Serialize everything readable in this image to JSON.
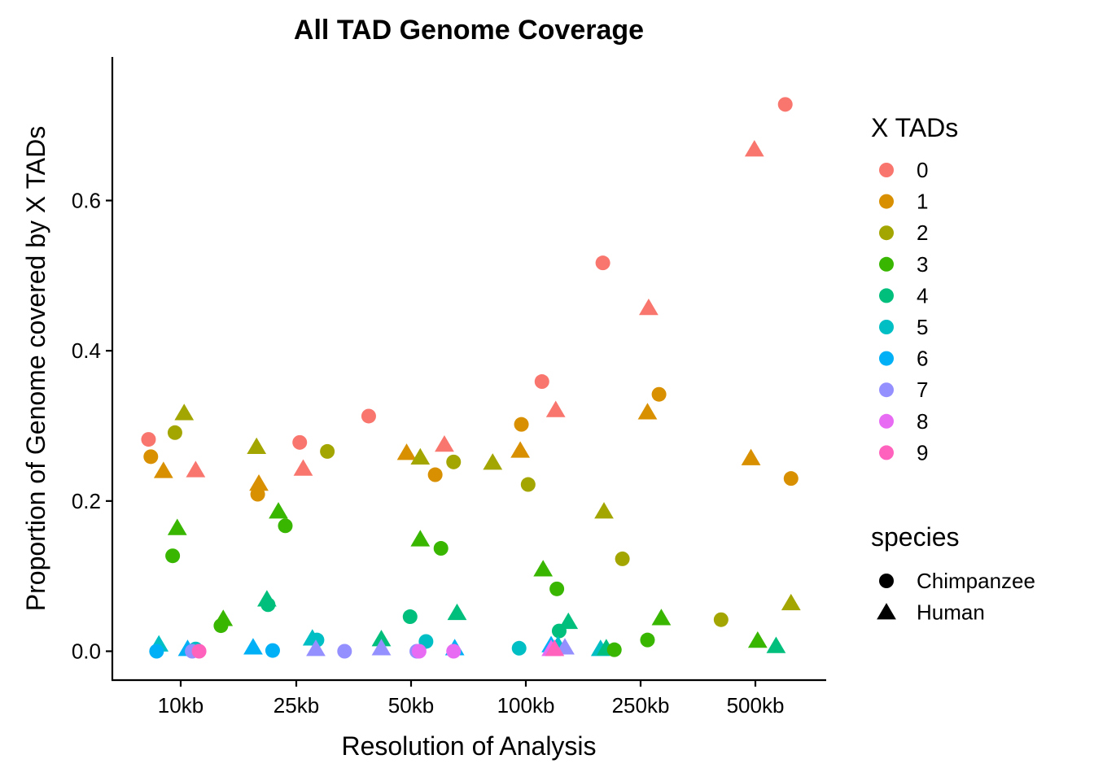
{
  "chart_data": {
    "type": "scatter",
    "title": "All TAD Genome Coverage",
    "xlabel": "Resolution of Analysis",
    "ylabel": "Proportion of Genome covered by X TADs",
    "categories": [
      "10kb",
      "25kb",
      "50kb",
      "100kb",
      "250kb",
      "500kb"
    ],
    "yticks": [
      0.0,
      0.2,
      0.4,
      0.6
    ],
    "ytick_labels": [
      "0.0",
      "0.2",
      "0.4",
      "0.6"
    ],
    "ylim": [
      -0.038,
      0.79
    ],
    "jitter_note": "points horizontally jittered around categories",
    "grid": false,
    "legend_position": "right",
    "color_legend": {
      "title": "X TADs",
      "entries": [
        {
          "label": "0",
          "color": "#F8766D"
        },
        {
          "label": "1",
          "color": "#D89000"
        },
        {
          "label": "2",
          "color": "#A3A500"
        },
        {
          "label": "3",
          "color": "#39B600"
        },
        {
          "label": "4",
          "color": "#00BF7D"
        },
        {
          "label": "5",
          "color": "#00BFC4"
        },
        {
          "label": "6",
          "color": "#00B0F6"
        },
        {
          "label": "7",
          "color": "#9590FF"
        },
        {
          "label": "8",
          "color": "#E76BF3"
        },
        {
          "label": "9",
          "color": "#FF62BC"
        }
      ]
    },
    "shape_legend": {
      "title": "species",
      "entries": [
        {
          "label": "Chimpanzee",
          "shape": "circle"
        },
        {
          "label": "Human",
          "shape": "triangle"
        }
      ]
    },
    "points": [
      {
        "x": 0.72,
        "y": 0.282,
        "tads": "0",
        "species": "Chimpanzee"
      },
      {
        "x": 0.74,
        "y": 0.259,
        "tads": "1",
        "species": "Chimpanzee"
      },
      {
        "x": 0.85,
        "y": 0.239,
        "tads": "1",
        "species": "Human"
      },
      {
        "x": 0.95,
        "y": 0.291,
        "tads": "2",
        "species": "Chimpanzee"
      },
      {
        "x": 1.03,
        "y": 0.316,
        "tads": "2",
        "species": "Human"
      },
      {
        "x": 1.13,
        "y": 0.24,
        "tads": "0",
        "species": "Human"
      },
      {
        "x": 0.97,
        "y": 0.163,
        "tads": "3",
        "species": "Human"
      },
      {
        "x": 0.93,
        "y": 0.127,
        "tads": "3",
        "species": "Chimpanzee"
      },
      {
        "x": 0.81,
        "y": 0.008,
        "tads": "5",
        "species": "Human"
      },
      {
        "x": 0.79,
        "y": 0.0,
        "tads": "6",
        "species": "Chimpanzee"
      },
      {
        "x": 1.06,
        "y": 0.002,
        "tads": "6",
        "species": "Human"
      },
      {
        "x": 1.13,
        "y": 0.003,
        "tads": "5",
        "species": "Chimpanzee"
      },
      {
        "x": 1.1,
        "y": 0.0,
        "tads": "7",
        "species": "Chimpanzee"
      },
      {
        "x": 1.16,
        "y": 0.0,
        "tads": "9",
        "species": "Chimpanzee"
      },
      {
        "x": 1.66,
        "y": 0.271,
        "tads": "2",
        "species": "Human"
      },
      {
        "x": 1.68,
        "y": 0.222,
        "tads": "1",
        "species": "Human"
      },
      {
        "x": 1.67,
        "y": 0.209,
        "tads": "1",
        "species": "Chimpanzee"
      },
      {
        "x": 2.03,
        "y": 0.278,
        "tads": "0",
        "species": "Chimpanzee"
      },
      {
        "x": 2.06,
        "y": 0.242,
        "tads": "0",
        "species": "Human"
      },
      {
        "x": 2.27,
        "y": 0.266,
        "tads": "2",
        "species": "Chimpanzee"
      },
      {
        "x": 1.85,
        "y": 0.185,
        "tads": "3",
        "species": "Human"
      },
      {
        "x": 1.91,
        "y": 0.167,
        "tads": "3",
        "species": "Chimpanzee"
      },
      {
        "x": 1.75,
        "y": 0.068,
        "tads": "4",
        "species": "Human"
      },
      {
        "x": 1.76,
        "y": 0.062,
        "tads": "4",
        "species": "Chimpanzee"
      },
      {
        "x": 1.37,
        "y": 0.042,
        "tads": "3",
        "species": "Human"
      },
      {
        "x": 1.35,
        "y": 0.034,
        "tads": "3",
        "species": "Chimpanzee"
      },
      {
        "x": 1.63,
        "y": 0.004,
        "tads": "6",
        "species": "Human"
      },
      {
        "x": 1.8,
        "y": 0.001,
        "tads": "6",
        "species": "Chimpanzee"
      },
      {
        "x": 2.14,
        "y": 0.016,
        "tads": "5",
        "species": "Human"
      },
      {
        "x": 2.18,
        "y": 0.015,
        "tads": "5",
        "species": "Chimpanzee"
      },
      {
        "x": 2.17,
        "y": 0.002,
        "tads": "7",
        "species": "Human"
      },
      {
        "x": 2.42,
        "y": 0.0,
        "tads": "7",
        "species": "Chimpanzee"
      },
      {
        "x": 2.63,
        "y": 0.313,
        "tads": "0",
        "species": "Chimpanzee"
      },
      {
        "x": 2.96,
        "y": 0.263,
        "tads": "1",
        "species": "Human"
      },
      {
        "x": 3.08,
        "y": 0.257,
        "tads": "2",
        "species": "Human"
      },
      {
        "x": 3.29,
        "y": 0.274,
        "tads": "0",
        "species": "Human"
      },
      {
        "x": 3.21,
        "y": 0.235,
        "tads": "1",
        "species": "Chimpanzee"
      },
      {
        "x": 3.37,
        "y": 0.252,
        "tads": "2",
        "species": "Chimpanzee"
      },
      {
        "x": 3.71,
        "y": 0.25,
        "tads": "2",
        "species": "Human"
      },
      {
        "x": 3.08,
        "y": 0.148,
        "tads": "3",
        "species": "Human"
      },
      {
        "x": 3.26,
        "y": 0.137,
        "tads": "3",
        "species": "Chimpanzee"
      },
      {
        "x": 3.4,
        "y": 0.05,
        "tads": "4",
        "species": "Human"
      },
      {
        "x": 2.99,
        "y": 0.046,
        "tads": "4",
        "species": "Chimpanzee"
      },
      {
        "x": 2.74,
        "y": 0.015,
        "tads": "4",
        "species": "Human"
      },
      {
        "x": 3.13,
        "y": 0.013,
        "tads": "5",
        "species": "Chimpanzee"
      },
      {
        "x": 2.74,
        "y": 0.003,
        "tads": "7",
        "species": "Human"
      },
      {
        "x": 3.05,
        "y": 0.0,
        "tads": "7",
        "species": "Chimpanzee"
      },
      {
        "x": 3.07,
        "y": 0.0,
        "tads": "8",
        "species": "Chimpanzee"
      },
      {
        "x": 3.38,
        "y": 0.003,
        "tads": "6",
        "species": "Human"
      },
      {
        "x": 3.37,
        "y": 0.0,
        "tads": "8",
        "species": "Chimpanzee"
      },
      {
        "x": 3.96,
        "y": 0.302,
        "tads": "1",
        "species": "Chimpanzee"
      },
      {
        "x": 4.14,
        "y": 0.359,
        "tads": "0",
        "species": "Chimpanzee"
      },
      {
        "x": 4.26,
        "y": 0.32,
        "tads": "0",
        "species": "Human"
      },
      {
        "x": 3.95,
        "y": 0.266,
        "tads": "1",
        "species": "Human"
      },
      {
        "x": 4.02,
        "y": 0.222,
        "tads": "2",
        "species": "Chimpanzee"
      },
      {
        "x": 4.15,
        "y": 0.108,
        "tads": "3",
        "species": "Human"
      },
      {
        "x": 4.27,
        "y": 0.083,
        "tads": "3",
        "species": "Chimpanzee"
      },
      {
        "x": 4.37,
        "y": 0.038,
        "tads": "4",
        "species": "Human"
      },
      {
        "x": 4.29,
        "y": 0.027,
        "tads": "4",
        "species": "Chimpanzee"
      },
      {
        "x": 3.94,
        "y": 0.004,
        "tads": "5",
        "species": "Chimpanzee"
      },
      {
        "x": 4.22,
        "y": 0.007,
        "tads": "6",
        "species": "Human"
      },
      {
        "x": 4.28,
        "y": 0.007,
        "tads": "5",
        "species": "Human"
      },
      {
        "x": 4.34,
        "y": 0.004,
        "tads": "7",
        "species": "Human"
      },
      {
        "x": 4.22,
        "y": 0.002,
        "tads": "8",
        "species": "Human"
      },
      {
        "x": 4.25,
        "y": 0.002,
        "tads": "9",
        "species": "Human"
      },
      {
        "x": 4.65,
        "y": 0.002,
        "tads": "5",
        "species": "Human"
      },
      {
        "x": 4.7,
        "y": 0.003,
        "tads": "4",
        "species": "Human"
      },
      {
        "x": 4.77,
        "y": 0.002,
        "tads": "3",
        "species": "Chimpanzee"
      },
      {
        "x": 4.67,
        "y": 0.517,
        "tads": "0",
        "species": "Chimpanzee"
      },
      {
        "x": 5.07,
        "y": 0.456,
        "tads": "0",
        "species": "Human"
      },
      {
        "x": 5.06,
        "y": 0.317,
        "tads": "1",
        "species": "Human"
      },
      {
        "x": 5.16,
        "y": 0.342,
        "tads": "1",
        "species": "Chimpanzee"
      },
      {
        "x": 4.68,
        "y": 0.185,
        "tads": "2",
        "species": "Human"
      },
      {
        "x": 4.84,
        "y": 0.123,
        "tads": "2",
        "species": "Chimpanzee"
      },
      {
        "x": 5.18,
        "y": 0.043,
        "tads": "3",
        "species": "Human"
      },
      {
        "x": 5.06,
        "y": 0.015,
        "tads": "3",
        "species": "Chimpanzee"
      },
      {
        "x": 5.7,
        "y": 0.042,
        "tads": "2",
        "species": "Chimpanzee"
      },
      {
        "x": 5.99,
        "y": 0.667,
        "tads": "0",
        "species": "Human"
      },
      {
        "x": 6.26,
        "y": 0.728,
        "tads": "0",
        "species": "Chimpanzee"
      },
      {
        "x": 5.96,
        "y": 0.256,
        "tads": "1",
        "species": "Human"
      },
      {
        "x": 6.31,
        "y": 0.23,
        "tads": "1",
        "species": "Chimpanzee"
      },
      {
        "x": 6.31,
        "y": 0.063,
        "tads": "2",
        "species": "Human"
      },
      {
        "x": 6.02,
        "y": 0.013,
        "tads": "3",
        "species": "Human"
      },
      {
        "x": 6.18,
        "y": 0.006,
        "tads": "4",
        "species": "Human"
      }
    ]
  }
}
